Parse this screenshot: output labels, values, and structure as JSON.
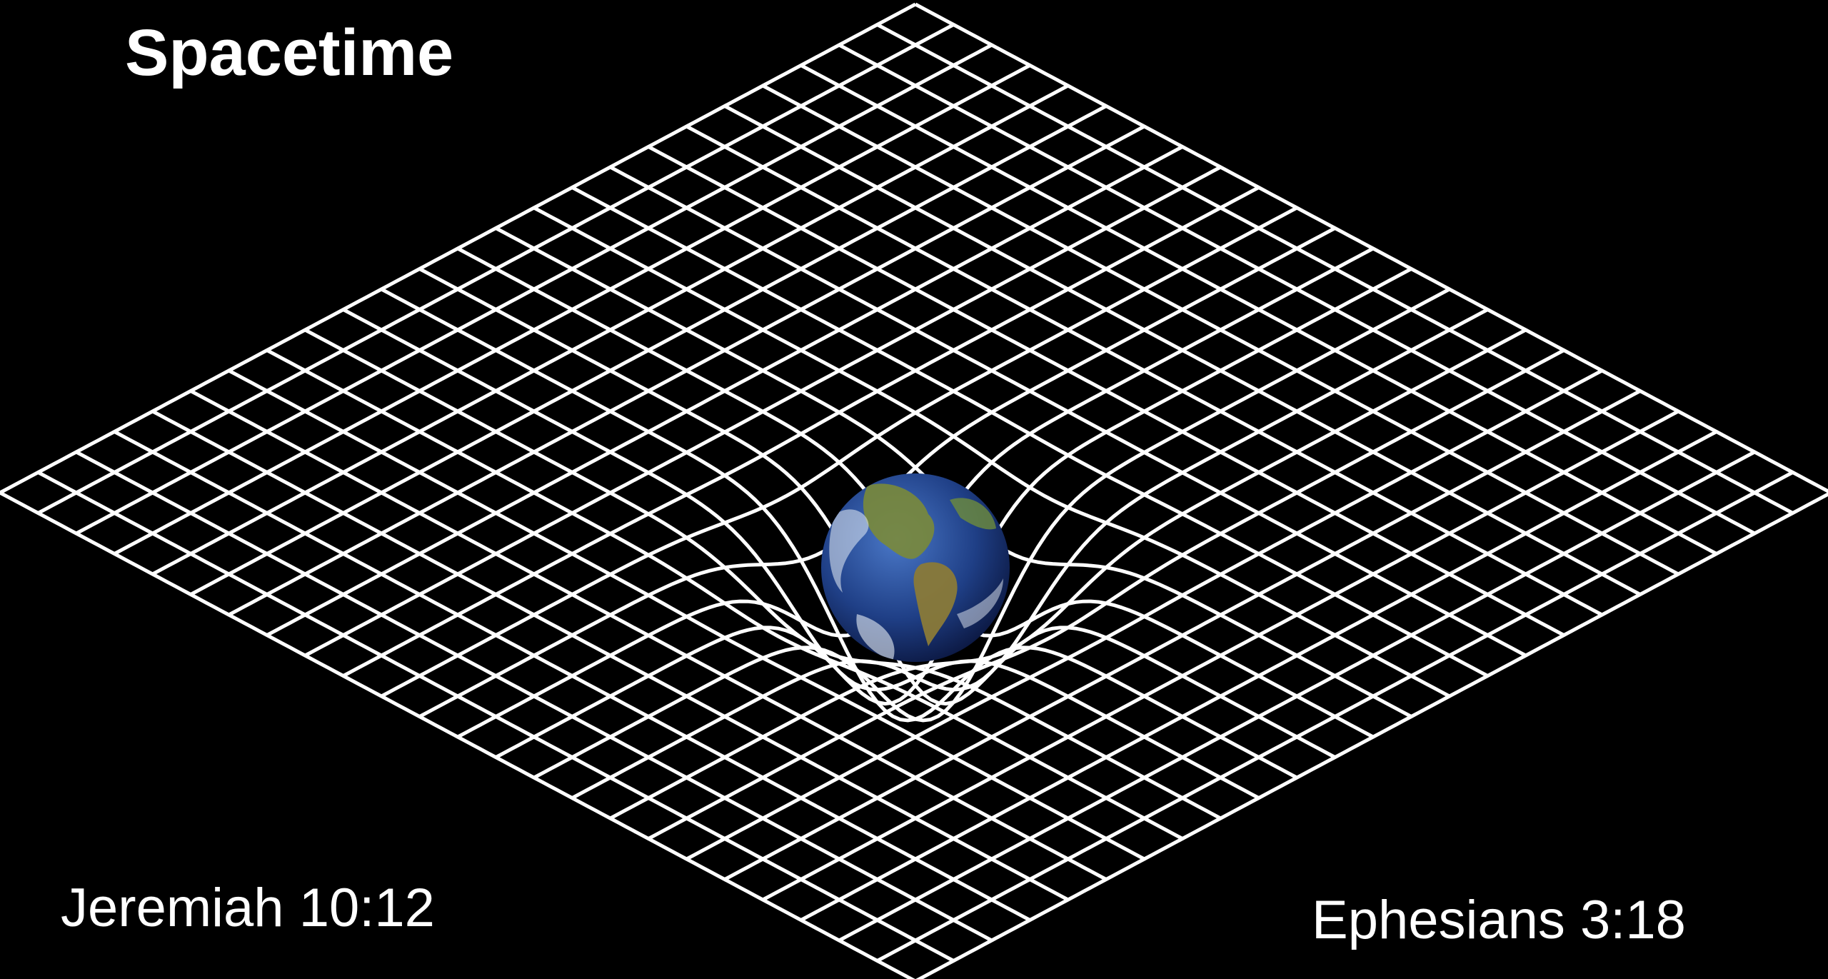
{
  "slide": {
    "title": "Spacetime",
    "references": [
      "Jeremiah 10:12",
      "Ephesians 3:18"
    ]
  }
}
